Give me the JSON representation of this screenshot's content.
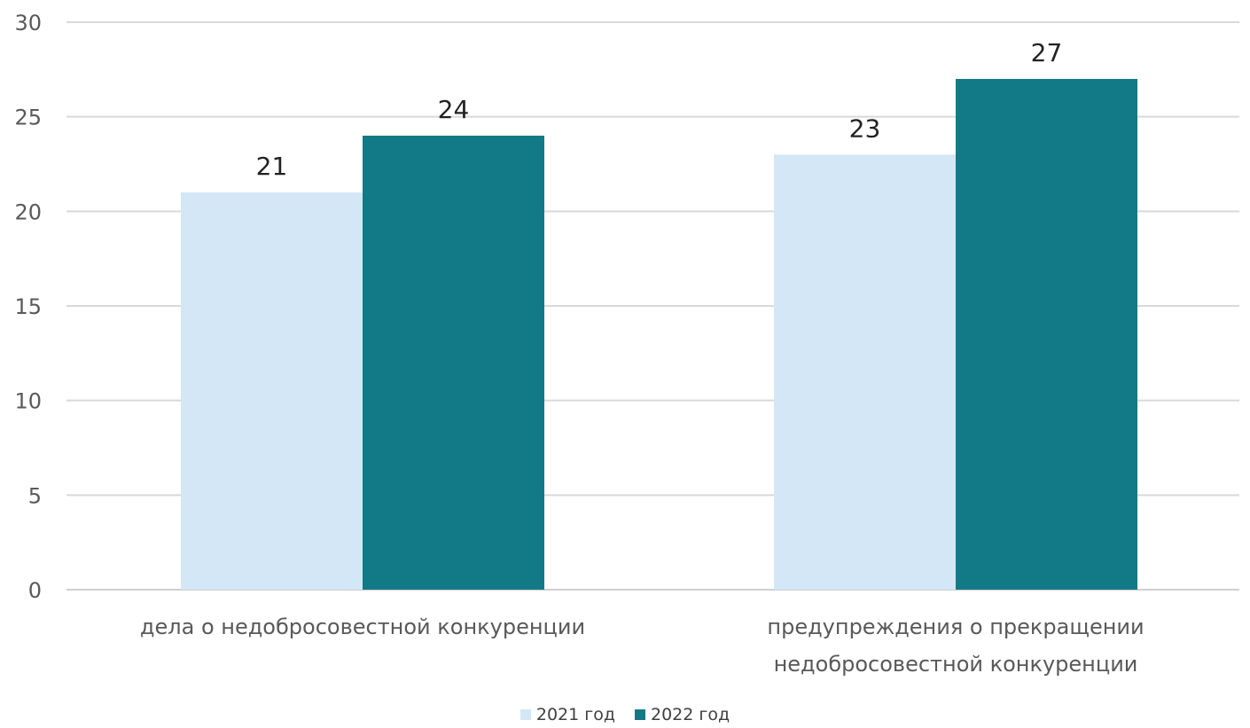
{
  "chart_data": {
    "type": "bar",
    "title": "",
    "xlabel": "",
    "ylabel": "",
    "ylim": [
      0,
      30
    ],
    "yticks": [
      0,
      5,
      10,
      15,
      20,
      25,
      30
    ],
    "grid": true,
    "legend_position": "bottom",
    "categories": [
      [
        "дела о недобросовестной конкуренции"
      ],
      [
        "предупреждения о прекращении",
        "недобросовестной конкуренции"
      ]
    ],
    "series": [
      {
        "name": "2021 год",
        "color": "#d3e7f6",
        "values": [
          21,
          23
        ]
      },
      {
        "name": "2022 год",
        "color": "#127a86",
        "values": [
          24,
          27
        ]
      }
    ]
  }
}
